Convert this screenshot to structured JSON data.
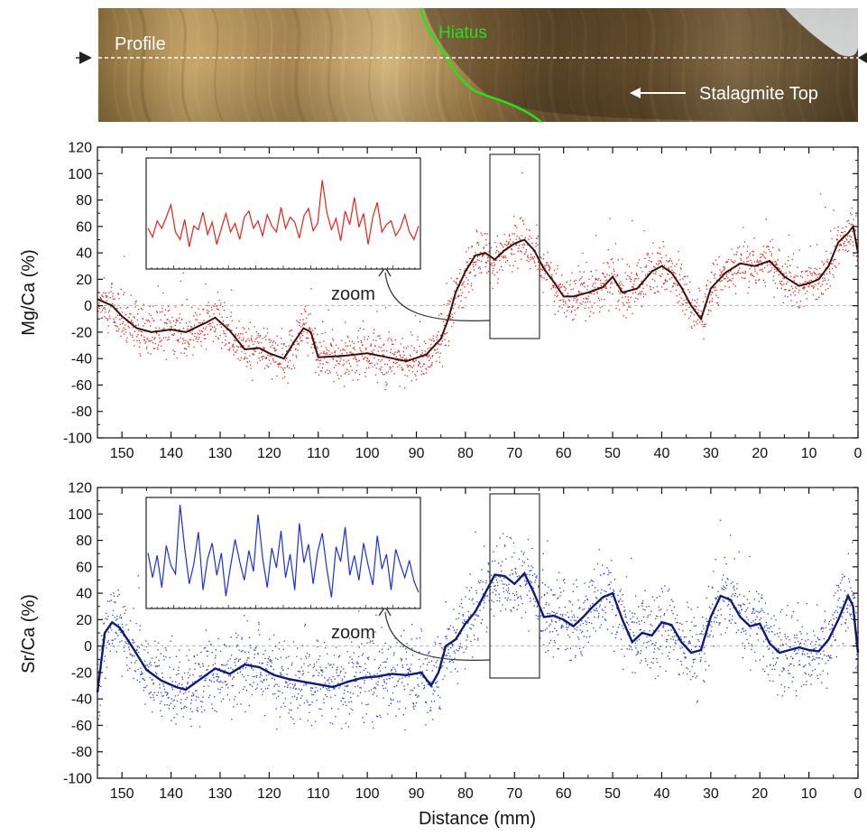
{
  "colors": {
    "mg_points": "#e3221b",
    "mg_line": "#3a0f0f",
    "mg_inset": "#e8201a",
    "sr_points": "#2b3ad6",
    "sr_line": "#0d1a7a",
    "sr_inset": "#1c2ee0",
    "hiatus": "#26e01a",
    "profile_line": "#ffffff",
    "zero_line": "#b5b5b5"
  },
  "photo": {
    "profile_label": "Profile",
    "hiatus_label": "Hiatus",
    "top_label": "Stalagmite Top",
    "marker_left": "left-arrow-marker",
    "marker_right": "right-arrow-marker"
  },
  "chart_data": [
    {
      "type": "scatter",
      "id": "mg",
      "ylabel": "Mg/Ca (%)",
      "xlabel": "",
      "xlim": [
        155,
        0
      ],
      "ylim": [
        -100,
        120
      ],
      "x_ticks": [
        "150",
        "140",
        "130",
        "120",
        "110",
        "100",
        "90",
        "80",
        "70",
        "60",
        "50",
        "40",
        "30",
        "20",
        "10",
        "0"
      ],
      "y_ticks": [
        "120",
        "100",
        "80",
        "60",
        "40",
        "20",
        "0",
        "-20",
        "-40",
        "-60",
        "-80",
        "-100"
      ],
      "zero_line": true,
      "zoom_label": "zoom",
      "zoom_window": {
        "x_range": [
          75,
          65
        ],
        "y_range": [
          -25,
          115
        ]
      },
      "smoothed": {
        "x": [
          155,
          152,
          150,
          147,
          144,
          140,
          137,
          133,
          131,
          128,
          125,
          122,
          120,
          117,
          115,
          113,
          111.5,
          110,
          105,
          100,
          96,
          92,
          88,
          85,
          83.5,
          82,
          80,
          78,
          76,
          74,
          72,
          70,
          68,
          66,
          64,
          62,
          60,
          58,
          55,
          52,
          50,
          48,
          45,
          42,
          40,
          38,
          36,
          34,
          32,
          30,
          27,
          24,
          21,
          18,
          15,
          12,
          10,
          8,
          6,
          4,
          2,
          1,
          0
        ],
        "y": [
          5,
          0,
          -8,
          -17,
          -20,
          -18,
          -20,
          -13,
          -9,
          -19,
          -33,
          -32,
          -36,
          -40,
          -28,
          -17,
          -20,
          -39,
          -38,
          -36,
          -39,
          -42,
          -37,
          -25,
          -10,
          10,
          26,
          38,
          40,
          35,
          42,
          47,
          50,
          42,
          28,
          18,
          7,
          7,
          10,
          14,
          22,
          10,
          13,
          26,
          30,
          25,
          14,
          0,
          -10,
          13,
          25,
          32,
          30,
          34,
          22,
          15,
          17,
          20,
          30,
          48,
          55,
          60,
          40
        ]
      },
      "inset_series": [
        58,
        51,
        64,
        58,
        67,
        77,
        55,
        49,
        65,
        43,
        60,
        57,
        71,
        53,
        63,
        45,
        58,
        70,
        55,
        62,
        49,
        67,
        72,
        58,
        64,
        52,
        69,
        60,
        55,
        75,
        58,
        67,
        63,
        50,
        68,
        74,
        56,
        62,
        97,
        71,
        57,
        66,
        48,
        72,
        61,
        83,
        59,
        70,
        45,
        67,
        79,
        55,
        61,
        64,
        52,
        58,
        69,
        55,
        49,
        60
      ]
    },
    {
      "type": "scatter",
      "id": "sr",
      "ylabel": "Sr/Ca (%)",
      "xlabel": "Distance (mm)",
      "xlim": [
        155,
        0
      ],
      "ylim": [
        -100,
        120
      ],
      "x_ticks": [
        "150",
        "140",
        "130",
        "120",
        "110",
        "100",
        "90",
        "80",
        "70",
        "60",
        "50",
        "40",
        "30",
        "20",
        "10",
        "0"
      ],
      "y_ticks": [
        "120",
        "100",
        "80",
        "60",
        "40",
        "20",
        "0",
        "-20",
        "-40",
        "-60",
        "-80",
        "-100"
      ],
      "zero_line": true,
      "zoom_label": "zoom",
      "zoom_window": {
        "x_range": [
          75,
          65
        ],
        "y_range": [
          -25,
          115
        ]
      },
      "smoothed": {
        "x": [
          155,
          153.5,
          152,
          150.5,
          148,
          145,
          142,
          139,
          137,
          134,
          131,
          128,
          125,
          122,
          119,
          116,
          113,
          110,
          107,
          104,
          101,
          98,
          95,
          92,
          89,
          87,
          85.5,
          84,
          82,
          80,
          78,
          76,
          74,
          72,
          70,
          68,
          66,
          64,
          62,
          60,
          58,
          56,
          54,
          52,
          50,
          48,
          46,
          44,
          42,
          40,
          38,
          36,
          34,
          32,
          30,
          28,
          26,
          24,
          22,
          20,
          18,
          16,
          14,
          12,
          10,
          8,
          6,
          4,
          2,
          1,
          0
        ],
        "y": [
          -35,
          10,
          18,
          14,
          0,
          -18,
          -26,
          -31,
          -33,
          -25,
          -17,
          -21,
          -14,
          -16,
          -22,
          -25,
          -27,
          -29,
          -31,
          -27,
          -24,
          -23,
          -21,
          -22,
          -20,
          -30,
          -20,
          0,
          5,
          17,
          26,
          40,
          54,
          53,
          47,
          55,
          40,
          22,
          23,
          20,
          15,
          22,
          30,
          37,
          40,
          20,
          3,
          10,
          8,
          18,
          16,
          3,
          -5,
          -3,
          22,
          38,
          35,
          22,
          15,
          17,
          2,
          -5,
          -3,
          -1,
          -3,
          -4,
          5,
          20,
          38,
          30,
          -5
        ]
      },
      "inset_series": [
        70,
        50,
        68,
        42,
        76,
        60,
        53,
        109,
        74,
        45,
        61,
        87,
        40,
        65,
        78,
        52,
        70,
        35,
        59,
        81,
        63,
        48,
        72,
        55,
        101,
        66,
        42,
        74,
        58,
        88,
        50,
        69,
        40,
        94,
        62,
        77,
        45,
        71,
        86,
        57,
        34,
        75,
        63,
        91,
        52,
        68,
        48,
        78,
        60,
        44,
        84,
        57,
        69,
        40,
        73,
        61,
        50,
        64,
        47,
        38
      ]
    }
  ]
}
